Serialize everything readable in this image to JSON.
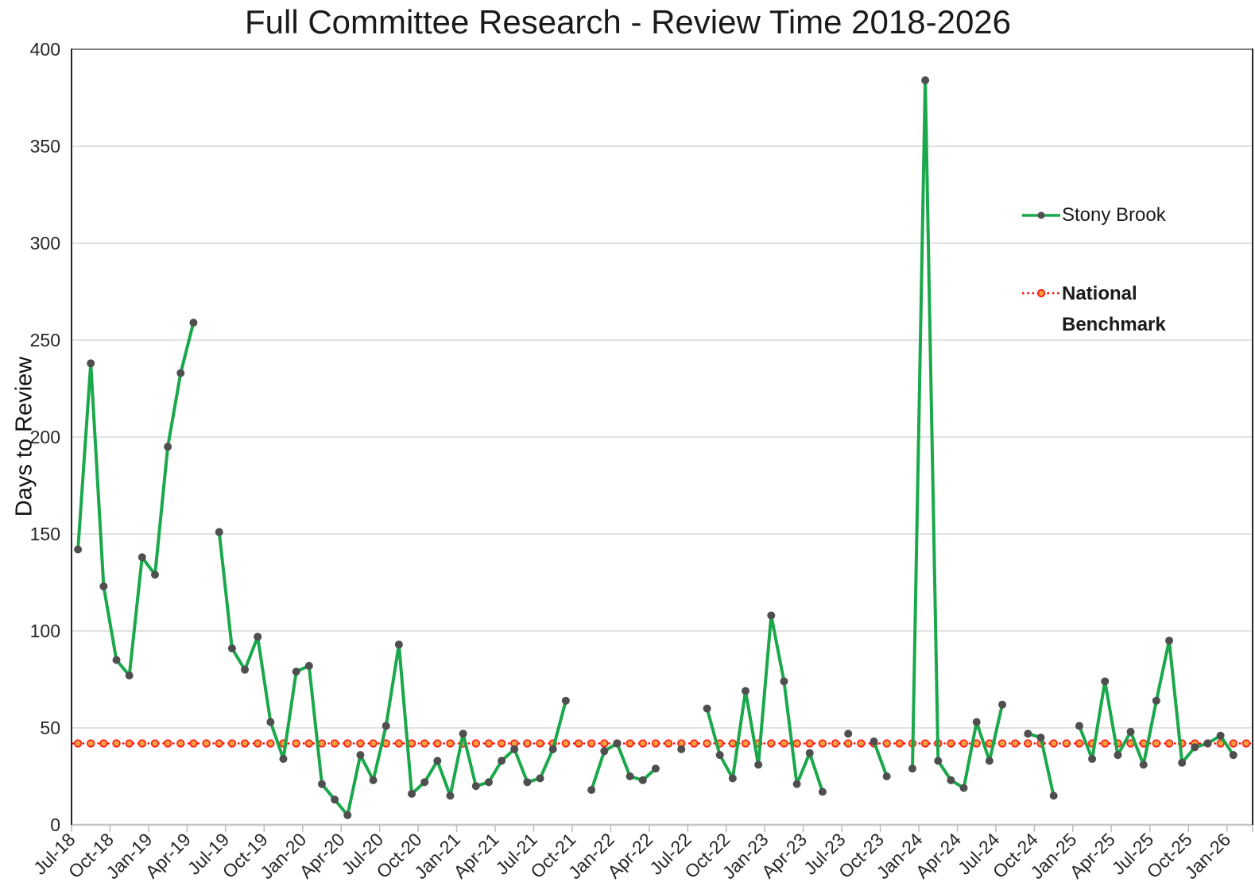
{
  "page": {
    "background": "#ffffff"
  },
  "chart_data": {
    "type": "line",
    "title": "Full Committee Research - Review Time 2018-2026",
    "xlabel": "",
    "ylabel": "Days to Review",
    "ylim": [
      0,
      400
    ],
    "yticks": [
      0,
      50,
      100,
      150,
      200,
      250,
      300,
      350,
      400
    ],
    "grid": "horizontal",
    "gridline_color": "#d9d9d9",
    "legend_position": "inside-right",
    "x_tick_labels": [
      "Jul-18",
      "Oct-18",
      "Jan-19",
      "Apr-19",
      "Jul-19",
      "Oct-19",
      "Jan-20",
      "Apr-20",
      "Jul-20",
      "Oct-20",
      "Jan-21",
      "Apr-21",
      "Jul-21",
      "Oct-21",
      "Jan-22",
      "Apr-22",
      "Jul-22",
      "Oct-22",
      "Jan-23",
      "Apr-23",
      "Jul-23",
      "Oct-23",
      "Jan-24",
      "Apr-24",
      "Jul-24",
      "Oct-24",
      "Jan-25",
      "Apr-25",
      "Jul-25",
      "Oct-25",
      "Jan-26"
    ],
    "series": [
      {
        "name": "Stony Brook",
        "color": "#1AA84B",
        "marker_color": "#4F4F4F",
        "points": [
          {
            "month": "Jul-18",
            "days": 142
          },
          {
            "month": "Aug-18",
            "days": 238
          },
          {
            "month": "Sep-18",
            "days": 123
          },
          {
            "month": "Oct-18",
            "days": 85
          },
          {
            "month": "Nov-18",
            "days": 77
          },
          {
            "month": "Dec-18",
            "days": 138
          },
          {
            "month": "Jan-19",
            "days": 129
          },
          {
            "month": "Feb-19",
            "days": 195
          },
          {
            "month": "Mar-19",
            "days": 233
          },
          {
            "month": "Apr-19",
            "days": 259
          },
          {
            "month": "May-19",
            "days": null
          },
          {
            "month": "Jun-19",
            "days": 151
          },
          {
            "month": "Jul-19",
            "days": 91
          },
          {
            "month": "Aug-19",
            "days": 80
          },
          {
            "month": "Sep-19",
            "days": 97
          },
          {
            "month": "Oct-19",
            "days": 53
          },
          {
            "month": "Nov-19",
            "days": 34
          },
          {
            "month": "Dec-19",
            "days": 79
          },
          {
            "month": "Jan-20",
            "days": 82
          },
          {
            "month": "Feb-20",
            "days": 21
          },
          {
            "month": "Mar-20",
            "days": 13
          },
          {
            "month": "Apr-20",
            "days": 5
          },
          {
            "month": "May-20",
            "days": 36
          },
          {
            "month": "Jun-20",
            "days": 23
          },
          {
            "month": "Jul-20",
            "days": 51
          },
          {
            "month": "Aug-20",
            "days": 93
          },
          {
            "month": "Sep-20",
            "days": 16
          },
          {
            "month": "Oct-20",
            "days": 22
          },
          {
            "month": "Nov-20",
            "days": 33
          },
          {
            "month": "Dec-20",
            "days": 15
          },
          {
            "month": "Jan-21",
            "days": 47
          },
          {
            "month": "Feb-21",
            "days": 20
          },
          {
            "month": "Mar-21",
            "days": 22
          },
          {
            "month": "Apr-21",
            "days": 33
          },
          {
            "month": "May-21",
            "days": 39
          },
          {
            "month": "Jun-21",
            "days": 22
          },
          {
            "month": "Jul-21",
            "days": 24
          },
          {
            "month": "Aug-21",
            "days": 39
          },
          {
            "month": "Sep-21",
            "days": 64
          },
          {
            "month": "Oct-21",
            "days": null
          },
          {
            "month": "Nov-21",
            "days": 18
          },
          {
            "month": "Dec-21",
            "days": 38
          },
          {
            "month": "Jan-22",
            "days": 42
          },
          {
            "month": "Feb-22",
            "days": 25
          },
          {
            "month": "Mar-22",
            "days": 23
          },
          {
            "month": "Apr-22",
            "days": 29
          },
          {
            "month": "May-22",
            "days": null
          },
          {
            "month": "Jun-22",
            "days": 39
          },
          {
            "month": "Jul-22",
            "days": null
          },
          {
            "month": "Aug-22",
            "days": 60
          },
          {
            "month": "Sep-22",
            "days": 36
          },
          {
            "month": "Oct-22",
            "days": 24
          },
          {
            "month": "Nov-22",
            "days": 69
          },
          {
            "month": "Dec-22",
            "days": 31
          },
          {
            "month": "Jan-23",
            "days": 108
          },
          {
            "month": "Feb-23",
            "days": 74
          },
          {
            "month": "Mar-23",
            "days": 21
          },
          {
            "month": "Apr-23",
            "days": 37
          },
          {
            "month": "May-23",
            "days": 17
          },
          {
            "month": "Jun-23",
            "days": null
          },
          {
            "month": "Jul-23",
            "days": 47
          },
          {
            "month": "Aug-23",
            "days": null
          },
          {
            "month": "Sep-23",
            "days": 43
          },
          {
            "month": "Oct-23",
            "days": 25
          },
          {
            "month": "Nov-23",
            "days": null
          },
          {
            "month": "Dec-23",
            "days": 29
          },
          {
            "month": "Jan-24",
            "days": 384
          },
          {
            "month": "Feb-24",
            "days": 33
          },
          {
            "month": "Mar-24",
            "days": 23
          },
          {
            "month": "Apr-24",
            "days": 19
          },
          {
            "month": "May-24",
            "days": 53
          },
          {
            "month": "Jun-24",
            "days": 33
          },
          {
            "month": "Jul-24",
            "days": 62
          },
          {
            "month": "Aug-24",
            "days": null
          },
          {
            "month": "Sep-24",
            "days": 47
          },
          {
            "month": "Oct-24",
            "days": 45
          },
          {
            "month": "Nov-24",
            "days": 15
          },
          {
            "month": "Dec-24",
            "days": null
          },
          {
            "month": "Jan-25",
            "days": 51
          },
          {
            "month": "Feb-25",
            "days": 34
          },
          {
            "month": "Mar-25",
            "days": 74
          },
          {
            "month": "Apr-25",
            "days": 36
          },
          {
            "month": "May-25",
            "days": 48
          },
          {
            "month": "Jun-25",
            "days": 31
          },
          {
            "month": "Jul-25",
            "days": 64
          },
          {
            "month": "Aug-25",
            "days": 95
          },
          {
            "month": "Sep-25",
            "days": 32
          },
          {
            "month": "Oct-25",
            "days": 40
          },
          {
            "month": "Nov-25",
            "days": 42
          },
          {
            "month": "Dec-25",
            "days": 46
          },
          {
            "month": "Jan-26",
            "days": 36
          }
        ]
      }
    ],
    "benchmark": {
      "name": "National Benchmark",
      "value": 42,
      "line_color": "#FF0000",
      "marker_fill": "#F2A33C",
      "marker_stroke": "#FF1F1F",
      "style": "dotted"
    }
  },
  "legend": {
    "series_label": "Stony Brook",
    "benchmark_label_line1": "National",
    "benchmark_label_line2": "Benchmark"
  }
}
